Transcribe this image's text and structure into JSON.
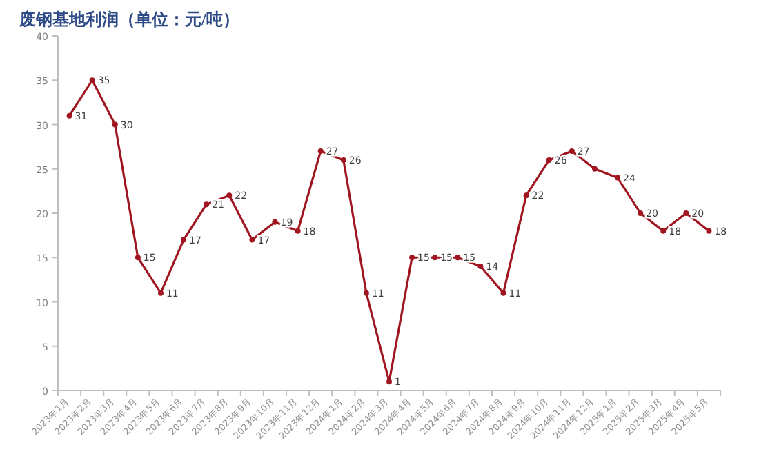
{
  "chart_data": {
    "type": "line",
    "title": "废钢基地利润（单位：元/吨）",
    "categories": [
      "2023年1月",
      "2023年2月",
      "2023年3月",
      "2023年4月",
      "2023年5月",
      "2023年6月",
      "2023年7月",
      "2023年8月",
      "2023年9月",
      "2023年10月",
      "2023年11月",
      "2023年12月",
      "2024年1月",
      "2024年2月",
      "2024年3月",
      "2024年4月",
      "2024年5月",
      "2024年6月",
      "2024年7月",
      "2024年8月",
      "2024年9月",
      "2024年10月",
      "2024年11月",
      "2024年12月",
      "2025年1月",
      "2025年2月",
      "2025年3月",
      "2025年4月",
      "2025年5月"
    ],
    "series": [
      {
        "color": "#a01620",
        "values": [
          31,
          35,
          30,
          15,
          11,
          17,
          21,
          22,
          17,
          19,
          18,
          27,
          26,
          11,
          1,
          15,
          15,
          15,
          14,
          11,
          22,
          26,
          27,
          25,
          24,
          20,
          18,
          20,
          18
        ],
        "value_labels": [
          "31",
          "35",
          "30",
          "15",
          "11",
          "17",
          "21",
          "22",
          "17",
          "19",
          "18",
          "27",
          "26",
          "11",
          "1",
          "15",
          "15",
          "15",
          "14",
          "11",
          "22",
          "26",
          "27",
          null,
          "24",
          "20",
          "18",
          "20",
          "18"
        ]
      }
    ],
    "ylim": [
      0,
      40
    ],
    "yticks": [
      0,
      5,
      10,
      15,
      20,
      25,
      30,
      35,
      40
    ],
    "grid": false,
    "marker": "circle",
    "line_style": "solid"
  }
}
